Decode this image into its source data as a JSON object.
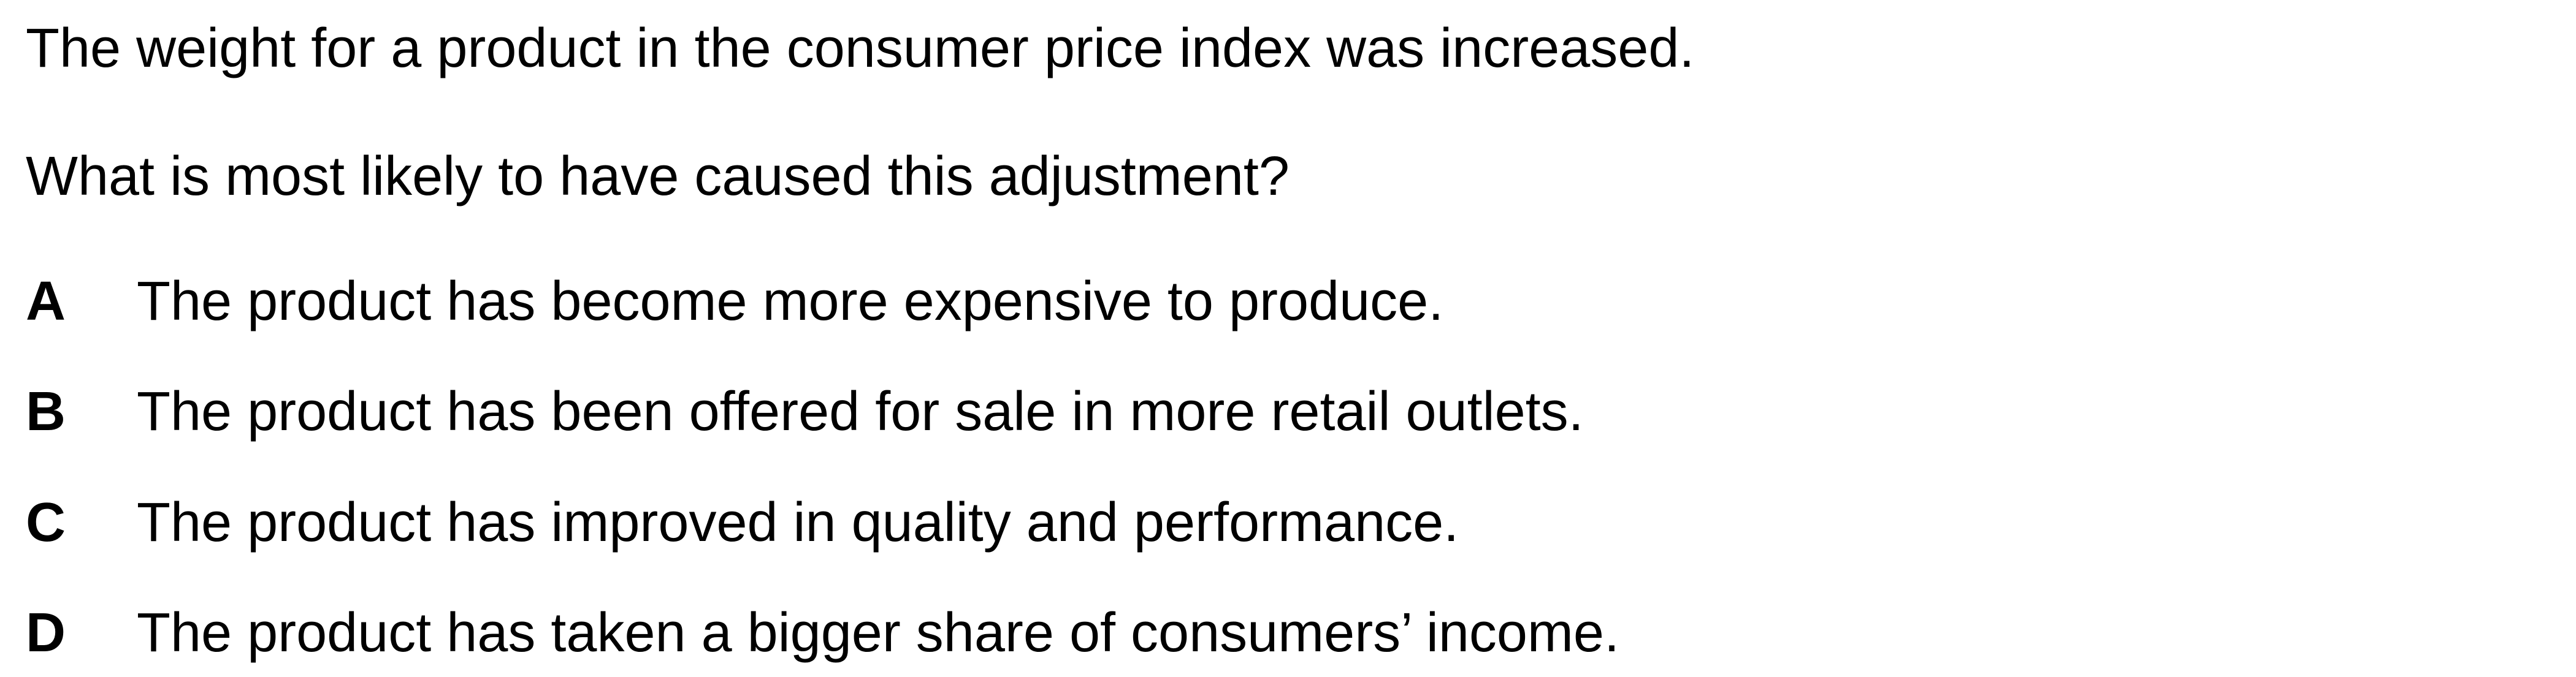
{
  "question": {
    "statement": "The weight for a product in the consumer price index was increased.",
    "prompt": "What is most likely to have caused this adjustment?",
    "options": [
      {
        "letter": "A",
        "text": "The product has become more expensive to produce."
      },
      {
        "letter": "B",
        "text": "The product has been offered for sale in more retail outlets."
      },
      {
        "letter": "C",
        "text": "The product has improved in quality and performance."
      },
      {
        "letter": "D",
        "text": "The product has taken a bigger share of consumers’ income."
      }
    ]
  }
}
